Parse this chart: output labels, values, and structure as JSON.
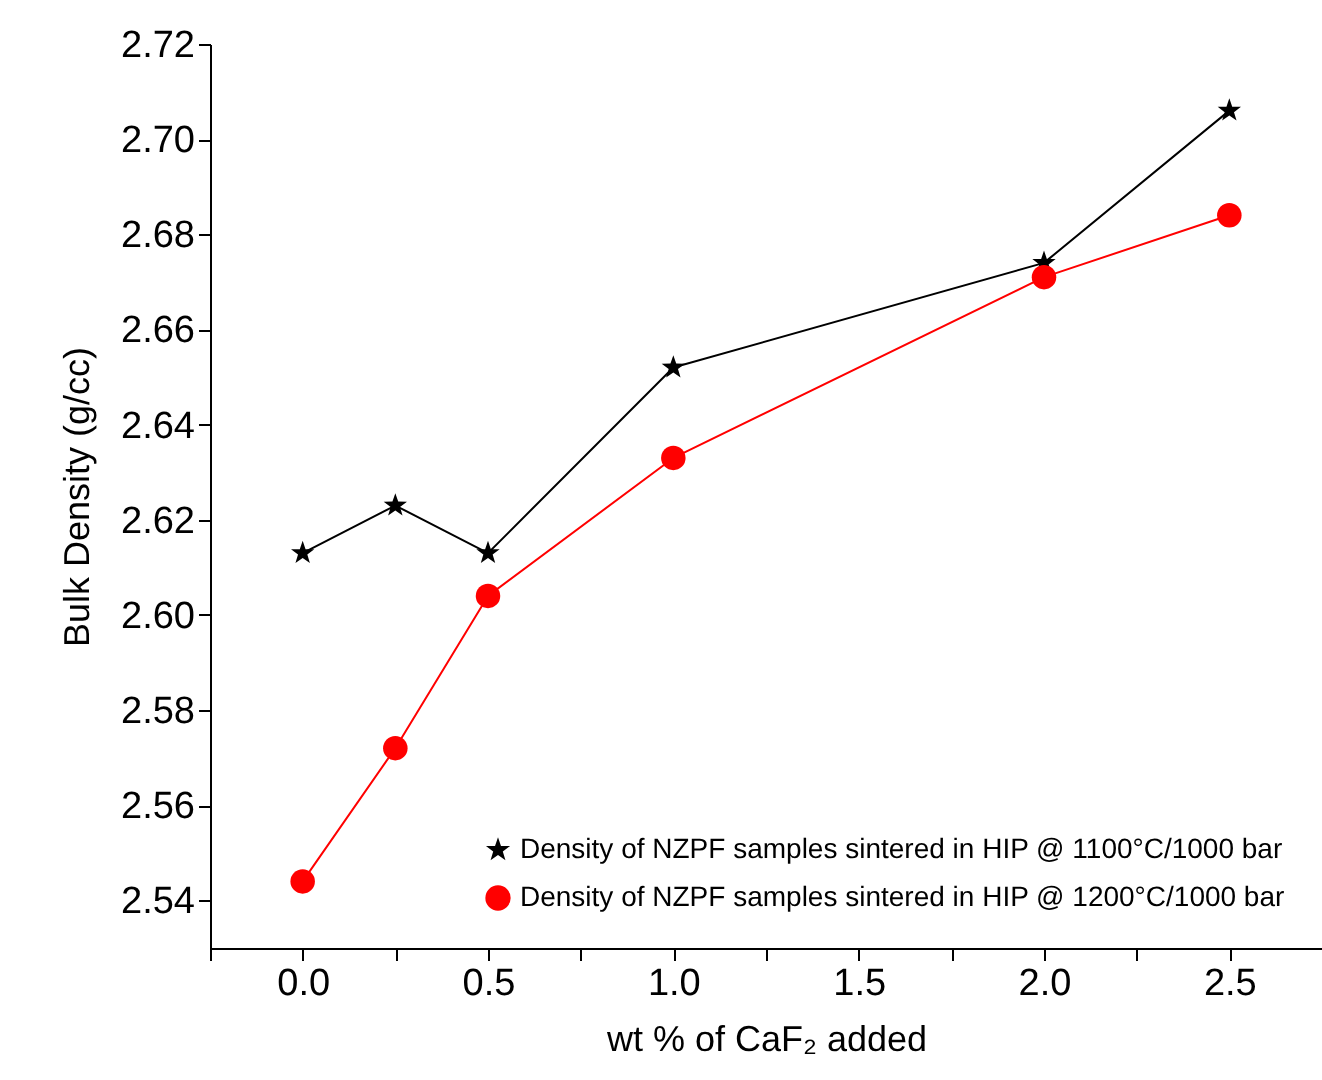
{
  "chart_data": {
    "type": "line",
    "xlabel": "wt % of CaF₂ added",
    "ylabel": "Bulk Density (g/cc)",
    "x": [
      0,
      0.25,
      0.5,
      1,
      2,
      2.5
    ],
    "series": [
      {
        "name": "Density of NZPF samples sintered in HIP @ 1100°C/1000 bar",
        "color": "#000000",
        "marker": "star",
        "values": [
          2.613,
          2.623,
          2.613,
          2.652,
          2.674,
          2.706
        ]
      },
      {
        "name": "Density of NZPF samples sintered in HIP @ 1200°C/1000 bar",
        "color": "#ff0000",
        "marker": "circle",
        "values": [
          2.544,
          2.572,
          2.604,
          2.633,
          2.671,
          2.684
        ]
      }
    ],
    "xlim": [
      -0.25,
      2.75
    ],
    "xticks": [
      {
        "value": -0.25,
        "label": null
      },
      {
        "value": 0,
        "label": "0.0"
      },
      {
        "value": 0.25,
        "label": null
      },
      {
        "value": 0.5,
        "label": "0.5"
      },
      {
        "value": 0.75,
        "label": null
      },
      {
        "value": 1,
        "label": "1.0"
      },
      {
        "value": 1.25,
        "label": null
      },
      {
        "value": 1.5,
        "label": "1.5"
      },
      {
        "value": 1.75,
        "label": null
      },
      {
        "value": 2,
        "label": "2.0"
      },
      {
        "value": 2.25,
        "label": null
      },
      {
        "value": 2.5,
        "label": "2.5"
      }
    ],
    "ylim": [
      2.53,
      2.72
    ],
    "yticks": [
      2.54,
      2.56,
      2.58,
      {
        "value": 2.6,
        "label": "2.60"
      },
      2.62,
      2.64,
      2.66,
      2.68,
      {
        "value": 2.7,
        "label": "2.70"
      },
      2.72
    ],
    "grid": false,
    "legend": "bottom right",
    "line_style": "solid"
  }
}
